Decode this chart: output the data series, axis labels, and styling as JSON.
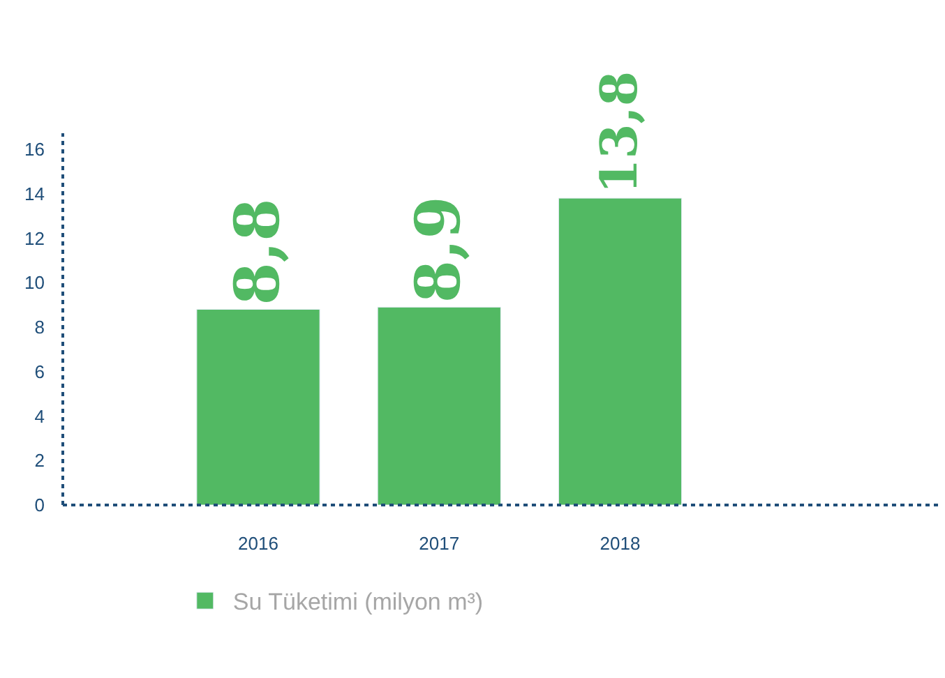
{
  "chart_data": {
    "type": "bar",
    "categories": [
      "2016",
      "2017",
      "2018"
    ],
    "series": [
      {
        "name": "Su Tüketimi (milyon m³)",
        "color": "#52b963",
        "values": [
          8.8,
          8.9,
          13.8
        ],
        "value_labels": [
          "8,8",
          "8,9",
          "13,8"
        ]
      }
    ],
    "ylim": [
      0,
      16
    ],
    "yticks": [
      0,
      2,
      4,
      6,
      8,
      10,
      12,
      14,
      16
    ],
    "legend": "bottom left"
  }
}
